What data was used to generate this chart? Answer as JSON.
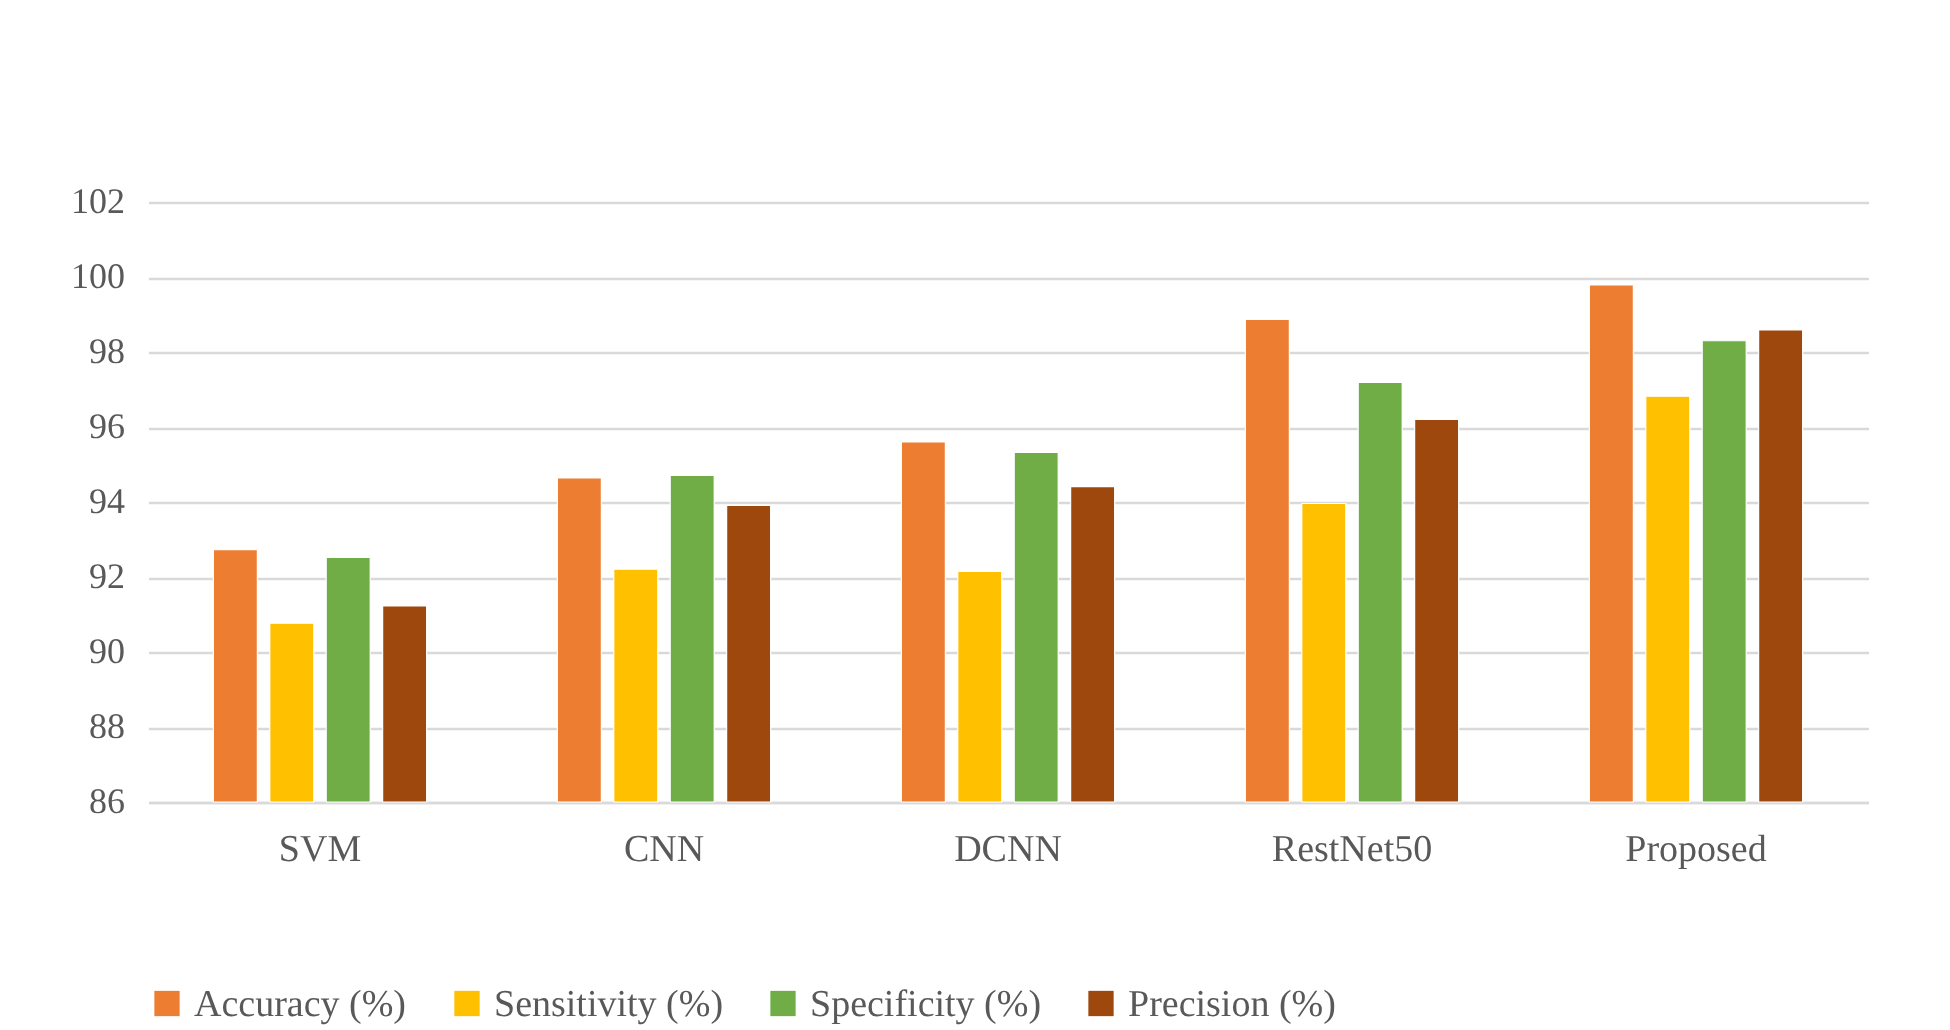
{
  "chart_data": {
    "type": "bar",
    "categories": [
      "SVM",
      "CNN",
      "DCNN",
      "RestNet50",
      "Proposed"
    ],
    "series": [
      {
        "name": "Accuracy (%)",
        "color": "#ed7d31",
        "values": [
          92.73,
          94.64,
          95.6,
          98.87,
          99.79
        ]
      },
      {
        "name": "Sensitivity (%)",
        "color": "#ffc000",
        "values": [
          90.77,
          92.21,
          92.15,
          93.96,
          96.82
        ]
      },
      {
        "name": "Specificity (%)",
        "color": "#70ad47",
        "values": [
          92.52,
          94.71,
          95.32,
          97.19,
          98.3
        ]
      },
      {
        "name": "Precision (%)",
        "color": "#9e480e",
        "values": [
          91.23,
          93.91,
          94.41,
          96.2,
          98.59
        ]
      }
    ],
    "ylim": [
      86,
      102
    ],
    "yticks": [
      86,
      88,
      90,
      92,
      94,
      96,
      98,
      100,
      102
    ],
    "grid": "y",
    "legend": "bottom"
  }
}
